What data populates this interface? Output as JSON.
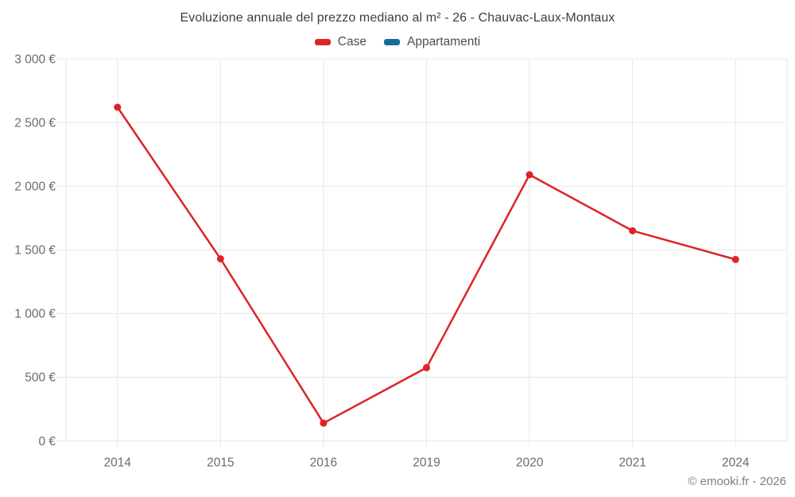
{
  "title": "Evoluzione annuale del prezzo mediano al m² - 26 - Chauvac-Laux-Montaux",
  "legend": [
    {
      "label": "Case",
      "color": "#dc2428"
    },
    {
      "label": "Appartamenti",
      "color": "#176b9e"
    }
  ],
  "copyright": "© emooki.fr - 2026",
  "colors": {
    "grid": "#e7e7e7",
    "tick_label": "#6b6b6b",
    "title": "#3d3d3d"
  },
  "chart_data": {
    "type": "line",
    "title": "Evoluzione annuale del prezzo mediano al m² - 26 - Chauvac-Laux-Montaux",
    "categories": [
      "2014",
      "2015",
      "2016",
      "2019",
      "2020",
      "2021",
      "2024"
    ],
    "series": [
      {
        "name": "Case",
        "color": "#dc2428",
        "values": [
          2620,
          1430,
          140,
          575,
          2090,
          1650,
          1425
        ]
      },
      {
        "name": "Appartamenti",
        "color": "#176b9e",
        "values": []
      }
    ],
    "xlabel": "",
    "ylabel": "",
    "ylim": [
      0,
      3000
    ],
    "ytick_step": 500,
    "ytick_labels": [
      "0 €",
      "500 €",
      "1 000 €",
      "1 500 €",
      "2 000 €",
      "2 500 €",
      "3 000 €"
    ],
    "grid": true,
    "legend_position": "top",
    "currency": "€"
  }
}
